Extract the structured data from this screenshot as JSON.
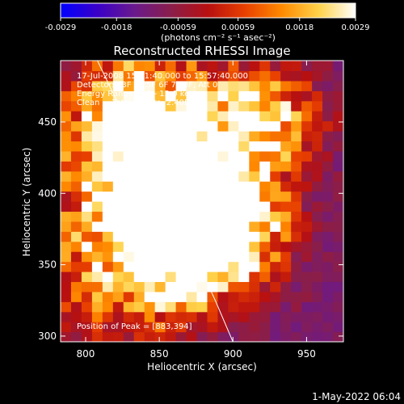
{
  "colorbar": {
    "ticks": [
      -0.0029,
      -0.0018,
      -0.00059,
      0.00059,
      0.0018,
      0.0029
    ],
    "tick_labels": [
      "-0.0029",
      "-0.0018",
      "-0.00059",
      "0.00059",
      "0.0018",
      "0.0029"
    ],
    "range": [
      -0.0029,
      0.0029
    ],
    "unit_label": "(photons cm⁻² s⁻¹ asec⁻²)",
    "colormap": [
      "#0000ff",
      "#3a00c8",
      "#6a1a8c",
      "#8a1e4a",
      "#b81010",
      "#e84000",
      "#ff8a00",
      "#ffd24a",
      "#ffffff"
    ]
  },
  "chart_data": {
    "type": "heatmap",
    "title": "Reconstructed RHESSI Image",
    "xlabel": "Heliocentric X (arcsec)",
    "ylabel": "Heliocentric Y (arcsec)",
    "xlim": [
      783,
      975
    ],
    "ylim": [
      296,
      493
    ],
    "xticks": [
      800,
      850,
      900,
      950
    ],
    "yticks": [
      300,
      350,
      400,
      450
    ],
    "annotations": [
      "17-Jul-2008 15:51:40.000 to 15:57:40.000",
      "Detectors: 3F 4F 5F 6F 7F 8F, Att 0",
      "Energy Range: 6.0 - 12.0 keV",
      "Clean     Total counts: 2.40E+04"
    ],
    "peak_label": "Position of Peak = [883,394]",
    "peak": {
      "x": 883,
      "y": 394
    },
    "grid_cols": 27,
    "grid_rows": 28,
    "limb_curve": {
      "x": [
        808,
        828,
        848,
        868,
        888,
        900
      ],
      "y": [
        493,
        450,
        410,
        370,
        325,
        296
      ]
    },
    "bright_sources": [
      {
        "x": 845,
        "y": 400,
        "amp": 1.0,
        "sig": 40
      },
      {
        "x": 883,
        "y": 394,
        "amp": 1.1,
        "sig": 25
      },
      {
        "x": 830,
        "y": 455,
        "amp": 0.7,
        "sig": 30
      },
      {
        "x": 870,
        "y": 440,
        "amp": 0.55,
        "sig": 35
      },
      {
        "x": 925,
        "y": 455,
        "amp": 0.6,
        "sig": 25
      },
      {
        "x": 895,
        "y": 370,
        "amp": 0.75,
        "sig": 28
      },
      {
        "x": 815,
        "y": 340,
        "amp": 0.45,
        "sig": 30
      },
      {
        "x": 858,
        "y": 340,
        "amp": 0.5,
        "sig": 22
      }
    ]
  },
  "footer": {
    "date": "1-May-2022 06:04"
  }
}
